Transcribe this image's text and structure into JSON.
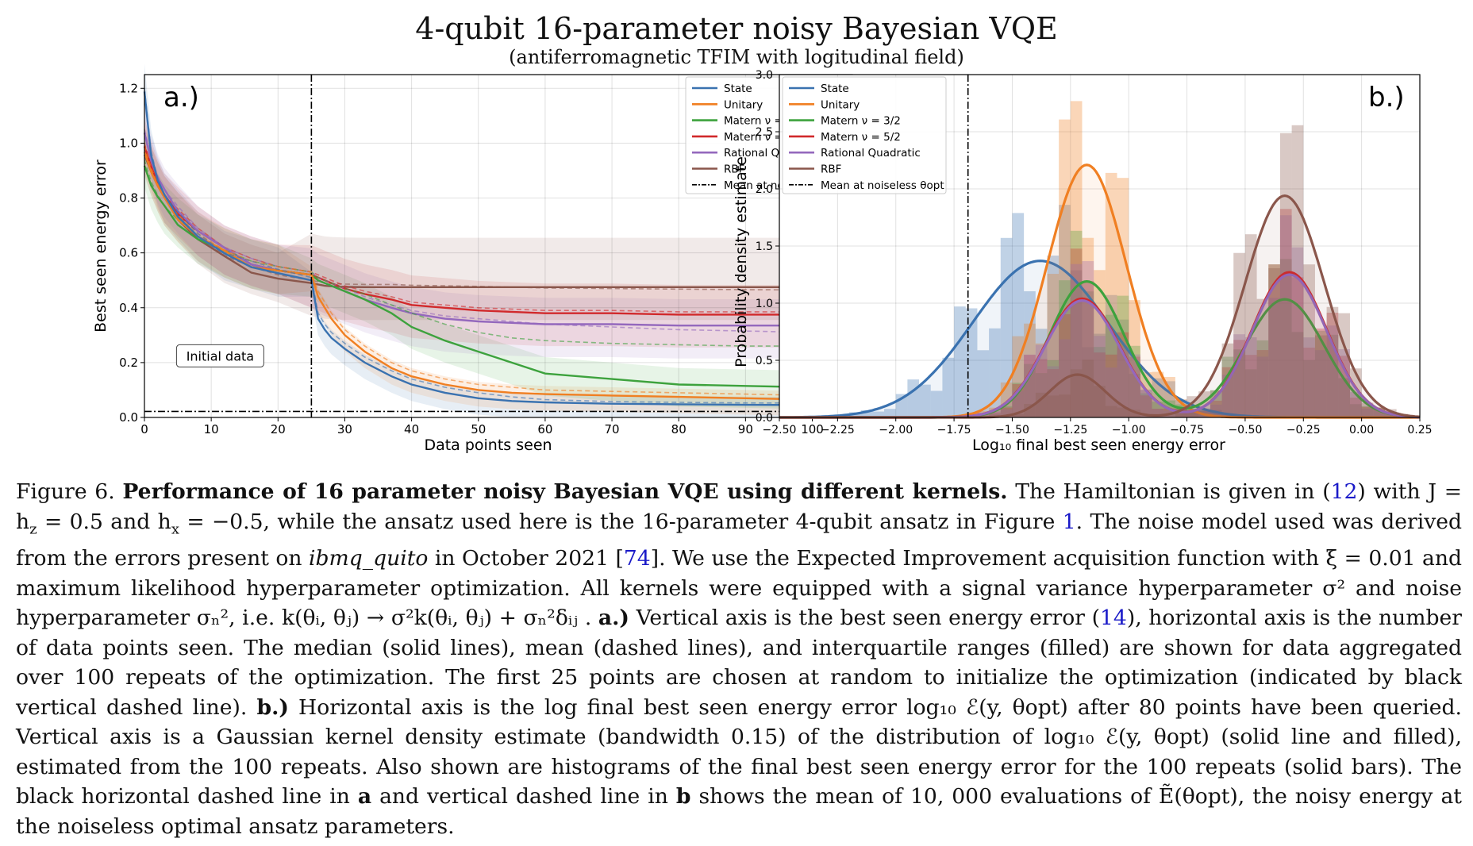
{
  "figure": {
    "title": "4-qubit 16-parameter noisy Bayesian VQE",
    "subtitle": "(antiferromagnetic TFIM with logitudinal field)"
  },
  "colors": {
    "State": "#3a72b0",
    "Unitary": "#f07f22",
    "Matern32": "#3da23d",
    "Matern52": "#d1292b",
    "RationalQuadratic": "#9468bd",
    "RBF": "#8a564b",
    "mean": "#000000"
  },
  "chart_data": [
    {
      "type": "line",
      "panel_label": "a.)",
      "xlabel": "Data points seen",
      "ylabel": "Best seen energy error",
      "xlim": [
        0,
        106
      ],
      "ylim": [
        0,
        1.25
      ],
      "xticks": [
        "0",
        "10",
        "20",
        "30",
        "40",
        "50",
        "60",
        "70",
        "80",
        "90",
        "100"
      ],
      "yticks": [
        "0.0",
        "0.2",
        "0.4",
        "0.6",
        "0.8",
        "1.0",
        "1.2"
      ],
      "annotation": "Initial data",
      "vline_x": 25,
      "hline_y": 0.022,
      "legend_placement": "top-right",
      "legend": [
        "State",
        "Unitary",
        "Matern ν = 3/2",
        "Matern ν = 5/2",
        "Rational Quadratic",
        "RBF",
        "Mean at noiseless θopt"
      ],
      "x": [
        0,
        1,
        2,
        3,
        5,
        8,
        12,
        16,
        20,
        25,
        26,
        27,
        28,
        30,
        33,
        37,
        40,
        45,
        50,
        55,
        60,
        70,
        80,
        90,
        100,
        106
      ],
      "series": [
        {
          "name": "State",
          "color_key": "State",
          "median": [
            1.2,
            0.96,
            0.86,
            0.8,
            0.74,
            0.66,
            0.59,
            0.56,
            0.53,
            0.5,
            0.36,
            0.32,
            0.29,
            0.25,
            0.2,
            0.15,
            0.12,
            0.09,
            0.07,
            0.06,
            0.055,
            0.05,
            0.048,
            0.046,
            0.045,
            0.045
          ],
          "mean": [
            1.2,
            0.97,
            0.87,
            0.81,
            0.75,
            0.67,
            0.6,
            0.57,
            0.54,
            0.51,
            0.38,
            0.34,
            0.31,
            0.27,
            0.22,
            0.17,
            0.14,
            0.11,
            0.09,
            0.075,
            0.065,
            0.058,
            0.055,
            0.053,
            0.052,
            0.052
          ]
        },
        {
          "name": "Unitary",
          "color_key": "Unitary",
          "median": [
            0.98,
            0.9,
            0.84,
            0.79,
            0.73,
            0.66,
            0.6,
            0.56,
            0.54,
            0.52,
            0.44,
            0.4,
            0.36,
            0.3,
            0.24,
            0.18,
            0.15,
            0.12,
            0.1,
            0.09,
            0.085,
            0.08,
            0.075,
            0.07,
            0.065,
            0.065
          ],
          "mean": [
            0.99,
            0.91,
            0.85,
            0.8,
            0.74,
            0.67,
            0.61,
            0.57,
            0.55,
            0.53,
            0.46,
            0.42,
            0.38,
            0.32,
            0.26,
            0.2,
            0.17,
            0.14,
            0.12,
            0.11,
            0.1,
            0.095,
            0.09,
            0.085,
            0.08,
            0.08
          ]
        },
        {
          "name": "Matern ν = 3/2",
          "color_key": "Matern32",
          "median": [
            0.93,
            0.85,
            0.8,
            0.76,
            0.71,
            0.65,
            0.6,
            0.56,
            0.54,
            0.52,
            0.5,
            0.49,
            0.48,
            0.46,
            0.43,
            0.38,
            0.33,
            0.28,
            0.24,
            0.2,
            0.16,
            0.14,
            0.12,
            0.115,
            0.11,
            0.11
          ],
          "mean": [
            0.94,
            0.86,
            0.81,
            0.77,
            0.72,
            0.66,
            0.61,
            0.57,
            0.55,
            0.53,
            0.51,
            0.5,
            0.49,
            0.47,
            0.45,
            0.41,
            0.38,
            0.34,
            0.31,
            0.29,
            0.28,
            0.27,
            0.265,
            0.26,
            0.26,
            0.26
          ]
        },
        {
          "name": "Matern ν = 5/2",
          "color_key": "Matern52",
          "median": [
            1.0,
            0.92,
            0.85,
            0.8,
            0.75,
            0.68,
            0.61,
            0.57,
            0.54,
            0.52,
            0.51,
            0.5,
            0.49,
            0.47,
            0.45,
            0.43,
            0.41,
            0.4,
            0.39,
            0.385,
            0.38,
            0.38,
            0.375,
            0.375,
            0.375,
            0.375
          ],
          "mean": [
            1.0,
            0.92,
            0.86,
            0.81,
            0.76,
            0.69,
            0.62,
            0.58,
            0.55,
            0.53,
            0.52,
            0.51,
            0.5,
            0.48,
            0.46,
            0.44,
            0.42,
            0.41,
            0.4,
            0.395,
            0.39,
            0.39,
            0.385,
            0.385,
            0.385,
            0.385
          ]
        },
        {
          "name": "Rational Quadratic",
          "color_key": "RationalQuadratic",
          "median": [
            1.05,
            0.94,
            0.87,
            0.82,
            0.76,
            0.68,
            0.61,
            0.57,
            0.54,
            0.52,
            0.5,
            0.49,
            0.48,
            0.46,
            0.43,
            0.4,
            0.38,
            0.36,
            0.35,
            0.345,
            0.34,
            0.34,
            0.335,
            0.335,
            0.335,
            0.335
          ],
          "mean": [
            1.05,
            0.95,
            0.88,
            0.83,
            0.77,
            0.69,
            0.62,
            0.58,
            0.55,
            0.53,
            0.51,
            0.5,
            0.49,
            0.47,
            0.44,
            0.41,
            0.39,
            0.37,
            0.36,
            0.35,
            0.34,
            0.33,
            0.32,
            0.315,
            0.31,
            0.31
          ]
        },
        {
          "name": "RBF",
          "color_key": "RBF",
          "median": [
            0.97,
            0.9,
            0.84,
            0.79,
            0.73,
            0.65,
            0.58,
            0.54,
            0.51,
            0.49,
            0.485,
            0.48,
            0.478,
            0.476,
            0.475,
            0.475,
            0.475,
            0.475,
            0.475,
            0.475,
            0.475,
            0.475,
            0.475,
            0.475,
            0.475,
            0.475
          ],
          "mean": [
            0.98,
            0.91,
            0.85,
            0.8,
            0.74,
            0.66,
            0.59,
            0.55,
            0.52,
            0.5,
            0.495,
            0.49,
            0.488,
            0.486,
            0.485,
            0.485,
            0.482,
            0.48,
            0.478,
            0.475,
            0.472,
            0.47,
            0.468,
            0.466,
            0.465,
            0.465
          ]
        }
      ]
    },
    {
      "type": "line",
      "panel_label": "b.)",
      "xlabel": "Log₁₀ final best seen energy error",
      "ylabel": "Probability density estimate",
      "xlim": [
        -2.5,
        0.25
      ],
      "ylim": [
        0,
        3.0
      ],
      "xticks": [
        "−2.50",
        "−2.25",
        "−2.00",
        "−1.75",
        "−1.50",
        "−1.25",
        "−1.00",
        "−0.75",
        "−0.50",
        "−0.25",
        "0.00",
        "0.25"
      ],
      "yticks": [
        "0.0",
        "0.5",
        "1.0",
        "1.5",
        "2.0",
        "2.5",
        "3.0"
      ],
      "vline_x": -1.69,
      "legend_placement": "top-left",
      "legend": [
        "State",
        "Unitary",
        "Matern ν = 3/2",
        "Matern ν = 5/2",
        "Rational Quadratic",
        "RBF",
        "Mean at noiseless θopt"
      ],
      "kde": [
        {
          "name": "State",
          "color_key": "State",
          "components": [
            {
              "w": 1.0,
              "mu": -1.38,
              "s": 0.29
            }
          ],
          "peak": 1.37
        },
        {
          "name": "Unitary",
          "color_key": "Unitary",
          "components": [
            {
              "w": 1.0,
              "mu": -1.18,
              "s": 0.17
            }
          ],
          "peak": 2.21
        },
        {
          "name": "Matern ν = 3/2",
          "color_key": "Matern32",
          "components": [
            {
              "w": 0.52,
              "mu": -1.18,
              "s": 0.16
            },
            {
              "w": 0.48,
              "mu": -0.33,
              "s": 0.17
            }
          ],
          "peak": 1.19
        },
        {
          "name": "Matern ν = 5/2",
          "color_key": "Matern52",
          "components": [
            {
              "w": 0.45,
              "mu": -1.2,
              "s": 0.16
            },
            {
              "w": 0.55,
              "mu": -0.31,
              "s": 0.16
            }
          ],
          "peak": 1.27
        },
        {
          "name": "Rational Quadratic",
          "color_key": "RationalQuadratic",
          "components": [
            {
              "w": 0.45,
              "mu": -1.2,
              "s": 0.16
            },
            {
              "w": 0.55,
              "mu": -0.31,
              "s": 0.16
            }
          ],
          "peak": 1.25
        },
        {
          "name": "RBF",
          "color_key": "RBF",
          "components": [
            {
              "w": 0.12,
              "mu": -1.22,
              "s": 0.12
            },
            {
              "w": 0.88,
              "mu": -0.33,
              "s": 0.17
            }
          ],
          "peak": 1.94
        }
      ]
    }
  ],
  "caption": {
    "fig_label": "Figure 6.",
    "bold_title": "Performance of 16 parameter noisy Bayesian VQE using different kernels.",
    "t1": "The Hamiltonian is given in (",
    "ref12": "12",
    "t2": ") with J = h",
    "t3": " = 0.5 and h",
    "t4": " = −0.5, while the ansatz used here is the 16-parameter 4-qubit ansatz in Figure ",
    "ref1": "1",
    "t5": ". The noise model used was derived from the errors present on ",
    "device": "ibmq_quito",
    "t6": " in October 2021 [",
    "ref74": "74",
    "t7": "]. We use the Expected Improvement acquisition function with ξ = 0.01 and maximum likelihood hyperparameter optimization. All kernels were equipped with a signal variance hyperparameter σ² and noise hyperparameter σₙ², i.e. k(θᵢ, θⱼ) → σ²k(θᵢ, θⱼ) + σₙ²δᵢⱼ .",
    "label_a": "a.)",
    "t8": "Vertical axis is the best seen energy error (",
    "ref14": "14",
    "t9": "), horizontal axis is the number of data points seen. The median (solid lines), mean (dashed lines), and interquartile ranges (filled) are shown for data aggregated over 100 repeats of the optimization. The first 25 points are chosen at random to initialize the optimization (indicated by black vertical dashed line).",
    "label_b": "b.)",
    "t10": "Horizontal axis is the log final best seen energy error log₁₀ ℰ(y, θopt) after 80 points have been queried. Vertical axis is a Gaussian kernel density estimate (bandwidth 0.15) of the distribution of log₁₀ ℰ(y, θopt) (solid line and filled), estimated from the 100 repeats. Also shown are histograms of the final best seen energy error for the 100 repeats (solid bars). The black horizontal dashed line in",
    "bold_a": "a",
    "t11": "and vertical dashed line in",
    "bold_b": "b",
    "t12": "shows the mean of 10, 000 evaluations of Ẽ(θopt), the noisy energy at the noiseless optimal ansatz parameters."
  }
}
